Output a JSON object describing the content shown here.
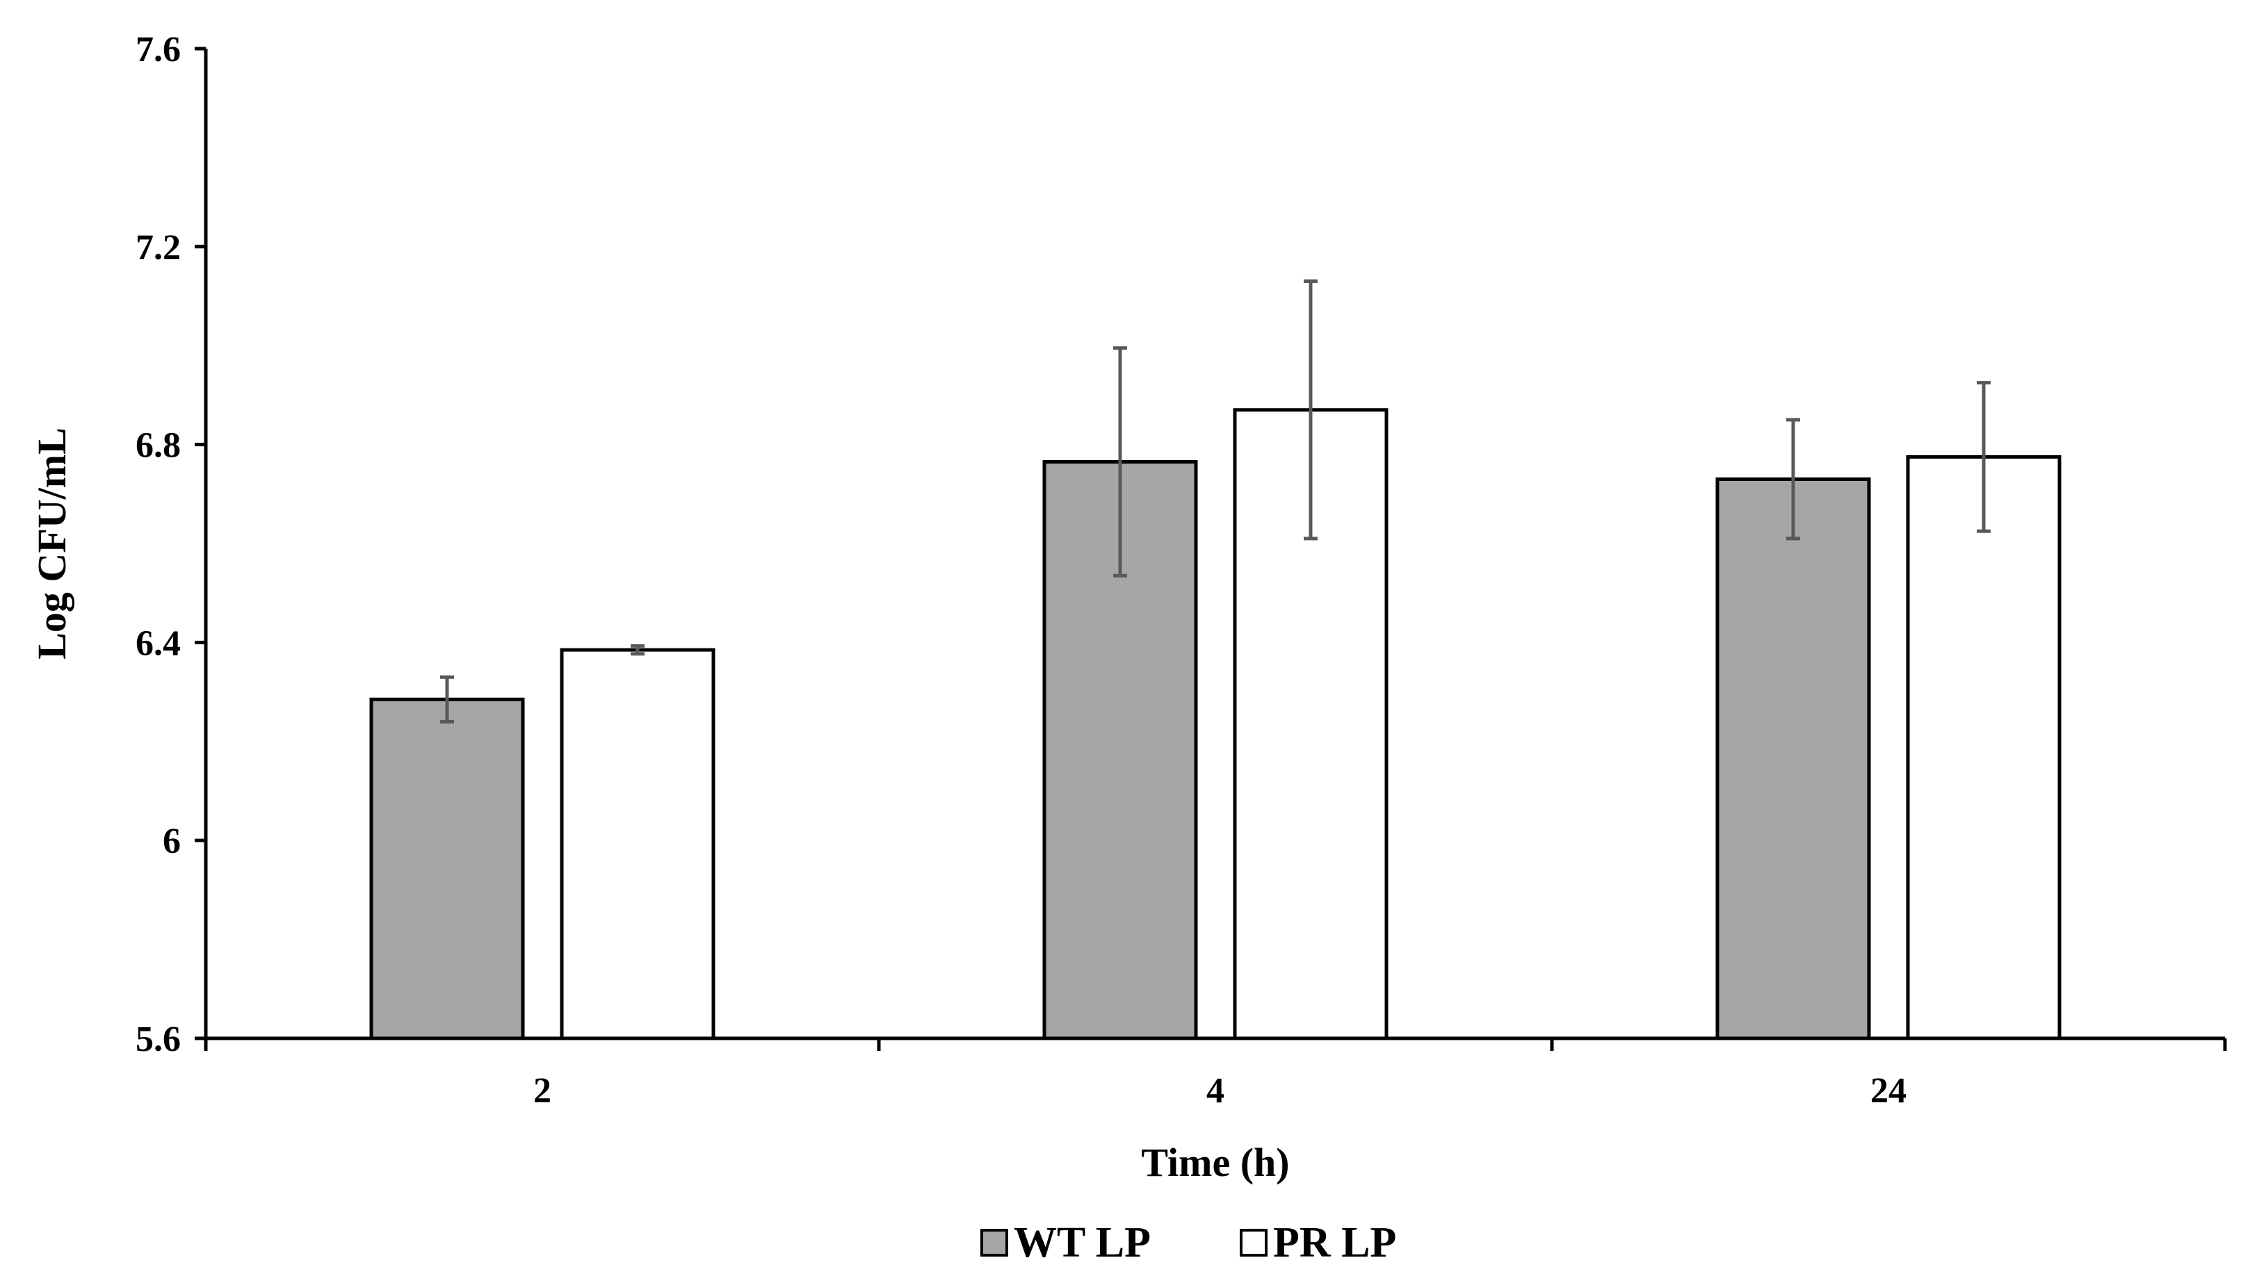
{
  "chart_data": {
    "type": "bar",
    "title": "",
    "xlabel": "Time (h)",
    "ylabel": "Log CFU/mL",
    "categories": [
      "2",
      "4",
      "24"
    ],
    "ylim": [
      5.6,
      7.6
    ],
    "yticks": [
      5.6,
      6,
      6.4,
      6.8,
      7.2,
      7.6
    ],
    "ytick_labels": [
      "5.6",
      "6",
      "6.4",
      "6.8",
      "7.2",
      "7.6"
    ],
    "grid": false,
    "legend_position": "bottom-center",
    "error_bars": true,
    "series": [
      {
        "name": "WT LP",
        "values": [
          6.285,
          6.765,
          6.73
        ],
        "errors": [
          0.045,
          0.23,
          0.12
        ],
        "color": "#a6a6a6"
      },
      {
        "name": "PR LP",
        "values": [
          6.385,
          6.87,
          6.775
        ],
        "errors": [
          0.008,
          0.26,
          0.15
        ],
        "color": "#ffffff"
      }
    ]
  }
}
